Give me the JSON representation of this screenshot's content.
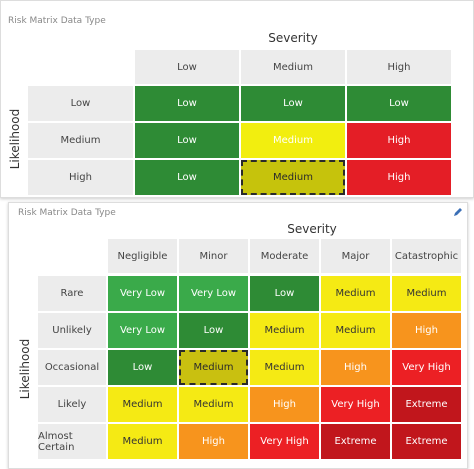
{
  "panels": [
    {
      "title": "Risk Matrix Data Type",
      "x_axis_label": "Severity",
      "y_axis_label": "Likelihood",
      "columns": [
        "Low",
        "Medium",
        "High"
      ],
      "rows": [
        {
          "label": "Low",
          "cells": [
            "Low",
            "Low",
            "Low"
          ]
        },
        {
          "label": "Medium",
          "cells": [
            "Low",
            "Medium",
            "High"
          ]
        },
        {
          "label": "High",
          "cells": [
            "Low",
            "Medium",
            "High"
          ]
        }
      ],
      "selected_cell": [
        2,
        1
      ],
      "styles": {
        "Low": {
          "fill": "#2e8b35",
          "text": "#ffffff"
        },
        "Medium": {
          "fill": "#f2ee0f",
          "text": "#ffffff"
        },
        "High": {
          "fill": "#e41e26",
          "text": "#ffffff"
        }
      }
    },
    {
      "title": "Risk Matrix Data Type",
      "x_axis_label": "Severity",
      "y_axis_label": "Likelihood",
      "columns": [
        "Negligible",
        "Minor",
        "Moderate",
        "Major",
        "Catastrophic"
      ],
      "rows": [
        {
          "label": "Rare",
          "cells": [
            "Very Low",
            "Very Low",
            "Low",
            "Medium",
            "Medium"
          ]
        },
        {
          "label": "Unlikely",
          "cells": [
            "Very Low",
            "Low",
            "Medium",
            "Medium",
            "High"
          ]
        },
        {
          "label": "Occasional",
          "cells": [
            "Low",
            "Medium",
            "Medium",
            "High",
            "Very High"
          ]
        },
        {
          "label": "Likely",
          "cells": [
            "Medium",
            "Medium",
            "High",
            "Very High",
            "Extreme"
          ]
        },
        {
          "label": "Almost Certain",
          "cells": [
            "Medium",
            "High",
            "Very High",
            "Extreme",
            "Extreme"
          ]
        }
      ],
      "selected_cell": [
        2,
        1
      ],
      "styles": {
        "Very Low": {
          "fill": "#3aaa4a",
          "text": "#ffffff"
        },
        "Low": {
          "fill": "#2e8b35",
          "text": "#ffffff"
        },
        "Medium": {
          "fill": "#f5ea14",
          "text": "#333333"
        },
        "High": {
          "fill": "#f7941d",
          "text": "#ffffff"
        },
        "Very High": {
          "fill": "#ec2024",
          "text": "#ffffff"
        },
        "Extreme": {
          "fill": "#c1161c",
          "text": "#ffffff"
        }
      }
    }
  ]
}
